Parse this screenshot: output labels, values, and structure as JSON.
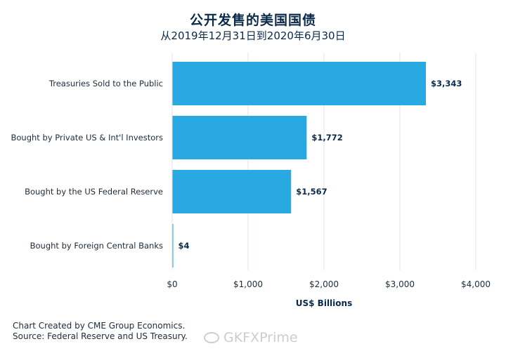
{
  "title": "公开发售的美国国债",
  "subtitle": "从2019年12月31日到2020年6月30日",
  "chart_data": {
    "type": "bar",
    "orientation": "horizontal",
    "categories": [
      "Treasuries Sold to the Public",
      "Bought by Private US & Int'l Investors",
      "Bought by the US Federal Reserve",
      "Bought by Foreign Central Banks"
    ],
    "values": [
      3343,
      1772,
      1567,
      4
    ],
    "value_labels": [
      "$3,343",
      "$1,772",
      "$1,567",
      "$4"
    ],
    "xlabel": "US$ Billions",
    "xlim": [
      0,
      4000
    ],
    "xticks": [
      0,
      1000,
      2000,
      3000,
      4000
    ],
    "xtick_labels": [
      "$0",
      "$1,000",
      "$2,000",
      "$3,000",
      "$4,000"
    ],
    "grid": "vertical",
    "bar_color": "#29a9e1"
  },
  "footer": {
    "line1": "Chart Created by CME Group Economics.",
    "line2": "Source: Federal Reserve and US Treasury."
  },
  "watermark": {
    "text": "GKFXPrime",
    "icon": "weibo-icon"
  }
}
